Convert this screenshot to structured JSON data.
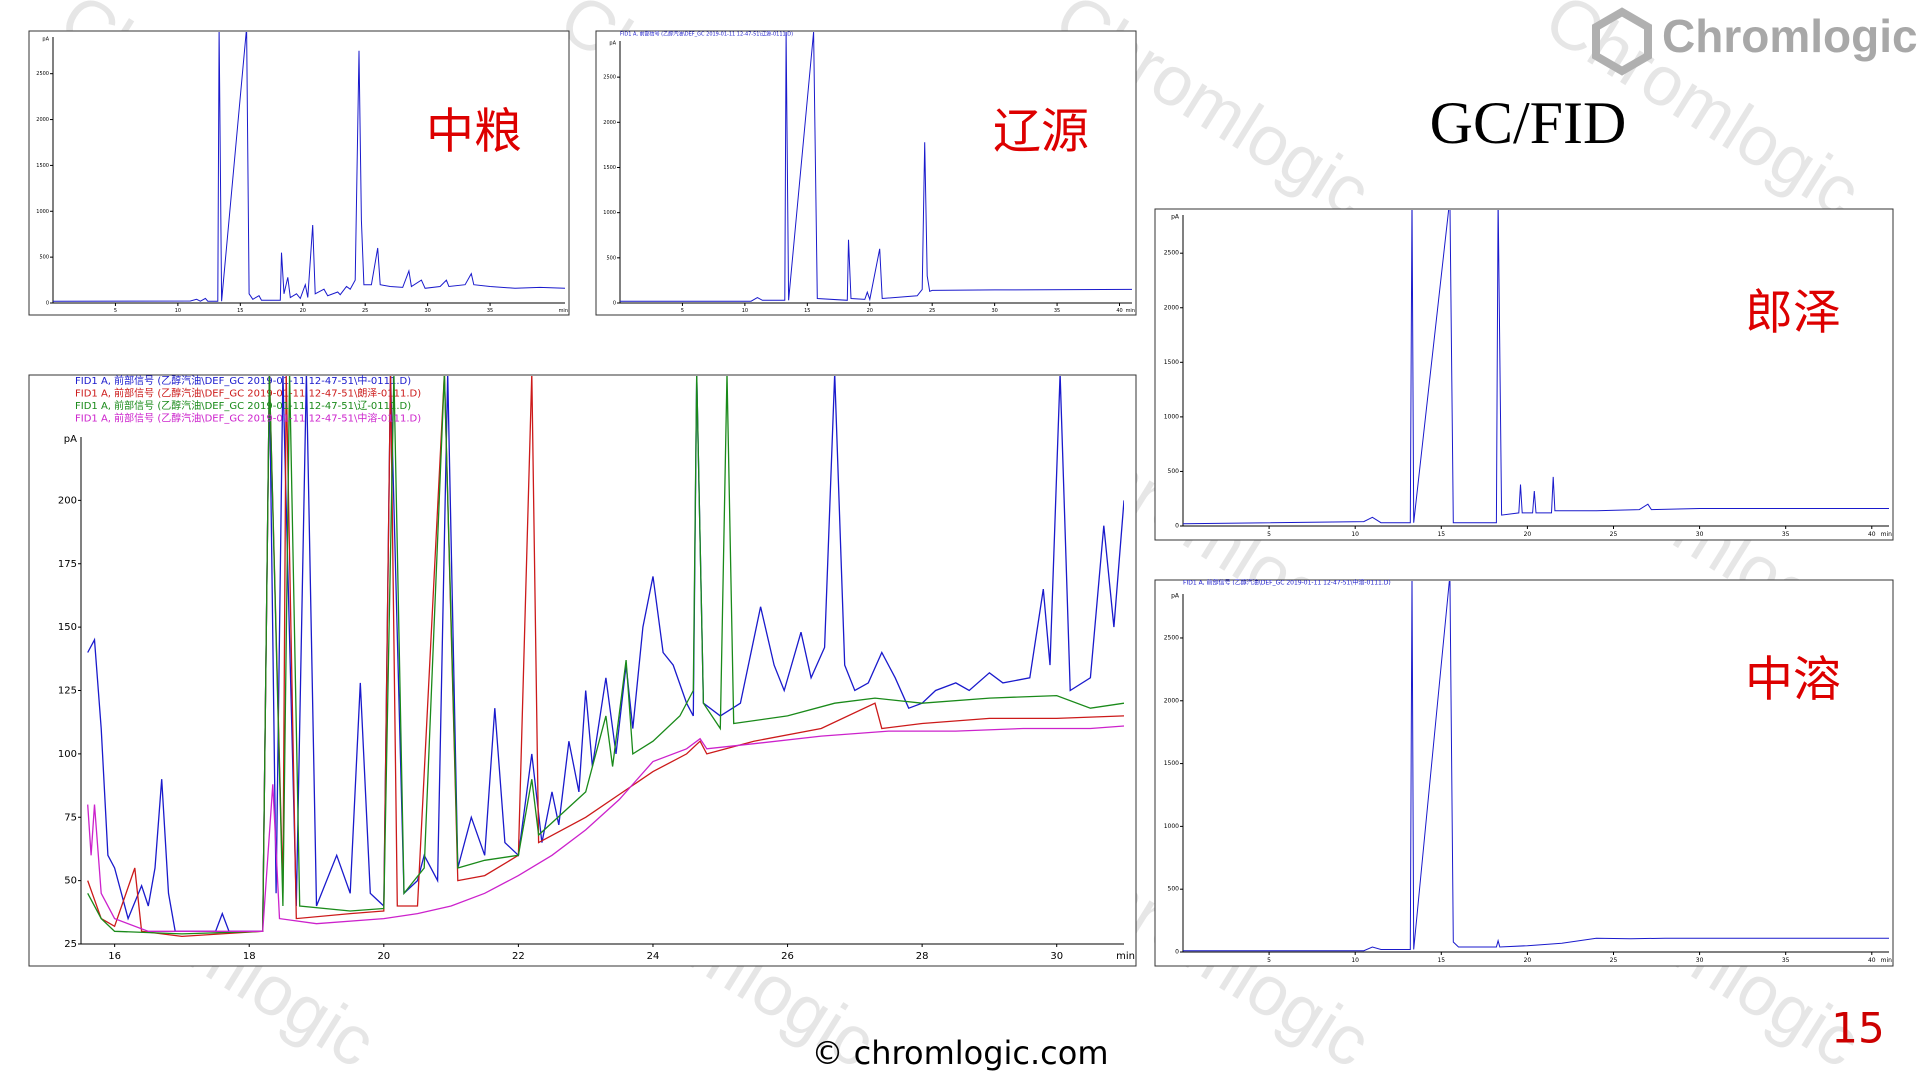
{
  "logo": "Chromlogic",
  "watermark": "Chromlogic",
  "title": "GC/FID",
  "footer": "© chromlogic.com",
  "page_number": "15",
  "chart_data": [
    {
      "type": "line",
      "label": "中粮",
      "x_label": "min",
      "y_label": "pA",
      "xlim": [
        0,
        41
      ],
      "ylim": [
        0,
        2900
      ],
      "xticks": [
        5,
        10,
        15,
        20,
        25,
        30,
        35
      ],
      "yticks": [
        0,
        500,
        1000,
        1500,
        2000,
        2500
      ],
      "series": [
        {
          "color": "#1a1acc",
          "x": [
            0,
            11,
            11.5,
            11.8,
            12.2,
            12.4,
            13.2,
            13.3,
            13.5,
            15.5,
            15.7,
            16,
            16.5,
            16.7,
            18.2,
            18.3,
            18.5,
            18.8,
            19,
            19.5,
            19.8,
            20.2,
            20.4,
            20.8,
            21,
            21.7,
            22,
            22.8,
            23,
            23.5,
            23.8,
            24.2,
            24.5,
            24.7,
            24.9,
            25.5,
            26,
            26.2,
            27,
            28,
            28.5,
            28.7,
            29.5,
            29.8,
            31,
            31.5,
            31.7,
            33,
            33.5,
            33.7,
            35,
            37,
            39,
            41
          ],
          "values": [
            20,
            22,
            40,
            20,
            50,
            20,
            20,
            3000,
            20,
            3000,
            100,
            40,
            80,
            30,
            30,
            550,
            100,
            280,
            60,
            100,
            50,
            200,
            60,
            850,
            100,
            150,
            80,
            120,
            90,
            180,
            150,
            250,
            2750,
            900,
            200,
            200,
            600,
            200,
            180,
            170,
            350,
            180,
            250,
            160,
            180,
            250,
            180,
            200,
            320,
            200,
            180,
            160,
            170,
            160
          ]
        }
      ]
    },
    {
      "type": "line",
      "label": "辽源",
      "x_label": "min",
      "y_label": "pA",
      "xlim": [
        0,
        41
      ],
      "ylim": [
        0,
        2900
      ],
      "xticks": [
        5,
        10,
        15,
        20,
        25,
        30,
        35,
        40
      ],
      "yticks": [
        0,
        500,
        1000,
        1500,
        2000,
        2500
      ],
      "series": [
        {
          "name": "FID1 A, 前部信号 (乙醇汽油\\DEF_GC 2019-01-11 12-47-51\\辽源-0111.D)",
          "color": "#1a1acc",
          "x": [
            0,
            10.5,
            11,
            11.4,
            13.2,
            13.3,
            13.5,
            15.5,
            15.8,
            18.2,
            18.3,
            18.5,
            19.6,
            19.8,
            20,
            20.8,
            21,
            23.8,
            24.2,
            24.4,
            24.6,
            24.8,
            25,
            30,
            41
          ],
          "values": [
            20,
            20,
            60,
            30,
            30,
            3000,
            30,
            3000,
            50,
            30,
            700,
            50,
            40,
            120,
            40,
            600,
            50,
            80,
            150,
            1780,
            300,
            130,
            140,
            145,
            150
          ]
        }
      ]
    },
    {
      "type": "line",
      "label": "郎泽",
      "x_label": "min",
      "y_label": "pA",
      "xlim": [
        0,
        41
      ],
      "ylim": [
        0,
        2850
      ],
      "xticks": [
        5,
        10,
        15,
        20,
        25,
        30,
        35,
        40
      ],
      "yticks": [
        0,
        500,
        1000,
        1500,
        2000,
        2500
      ],
      "series": [
        {
          "color": "#1a1acc",
          "x": [
            0,
            10.5,
            11,
            11.5,
            13.2,
            13.3,
            13.4,
            15.5,
            15.7,
            18.2,
            18.3,
            18.5,
            19.5,
            19.6,
            19.7,
            20.3,
            20.4,
            20.5,
            21.4,
            21.5,
            21.6,
            24,
            26.5,
            27,
            27.2,
            30,
            41
          ],
          "values": [
            20,
            40,
            80,
            30,
            30,
            3000,
            30,
            3000,
            30,
            30,
            3000,
            100,
            120,
            380,
            120,
            120,
            320,
            120,
            120,
            450,
            140,
            140,
            150,
            200,
            150,
            160,
            160
          ]
        }
      ]
    },
    {
      "type": "line",
      "label": "中溶",
      "x_label": "min",
      "y_label": "pA",
      "xlim": [
        0,
        41
      ],
      "ylim": [
        0,
        2850
      ],
      "xticks": [
        5,
        10,
        15,
        20,
        25,
        30,
        35,
        40
      ],
      "yticks": [
        0,
        500,
        1000,
        1500,
        2000,
        2500
      ],
      "series": [
        {
          "name": "FID1 A, 前部信号 (乙醇汽油\\DEF_GC 2019-01-11 12-47-51\\中溶-0111.D)",
          "color": "#1a1acc",
          "x": [
            0,
            10.5,
            11,
            11.5,
            13.2,
            13.3,
            13.4,
            15.5,
            15.7,
            16,
            18.2,
            18.3,
            18.4,
            20,
            22,
            24,
            26,
            28,
            30,
            41
          ],
          "values": [
            10,
            10,
            40,
            20,
            20,
            3000,
            20,
            3000,
            80,
            40,
            40,
            90,
            40,
            50,
            70,
            110,
            105,
            110,
            110,
            110
          ]
        }
      ]
    },
    {
      "type": "line",
      "x_label": "min",
      "y_label": "pA",
      "xlim": [
        15.5,
        31
      ],
      "ylim": [
        25,
        225
      ],
      "xticks": [
        16,
        18,
        20,
        22,
        24,
        26,
        28,
        30
      ],
      "yticks": [
        25,
        50,
        75,
        100,
        125,
        150,
        175,
        200
      ],
      "series": [
        {
          "name": "FID1 A, 前部信号 (乙醇汽油\\DEF_GC 2019-01-11 12-47-51\\中-0111.D)",
          "color": "#1a1acc",
          "x": [
            15.6,
            15.7,
            15.8,
            15.9,
            16.0,
            16.1,
            16.2,
            16.4,
            16.5,
            16.6,
            16.7,
            16.8,
            16.9,
            17.5,
            17.6,
            17.7,
            18.2,
            18.3,
            18.4,
            18.5,
            18.7,
            18.85,
            19.0,
            19.3,
            19.5,
            19.65,
            19.8,
            20.0,
            20.1,
            20.3,
            20.5,
            20.6,
            20.8,
            20.95,
            21.1,
            21.3,
            21.5,
            21.65,
            21.8,
            22.0,
            22.2,
            22.35,
            22.5,
            22.6,
            22.75,
            22.9,
            23.0,
            23.1,
            23.3,
            23.45,
            23.6,
            23.7,
            23.85,
            24.0,
            24.15,
            24.3,
            24.5,
            24.6,
            24.65,
            24.75,
            25.0,
            25.3,
            25.6,
            25.8,
            25.95,
            26.2,
            26.35,
            26.55,
            26.7,
            26.85,
            27.0,
            27.2,
            27.4,
            27.6,
            27.8,
            28.0,
            28.2,
            28.5,
            28.7,
            29.0,
            29.2,
            29.6,
            29.8,
            29.9,
            30.05,
            30.2,
            30.5,
            30.7,
            30.85,
            31.0
          ],
          "values": [
            140,
            145,
            110,
            60,
            55,
            45,
            35,
            48,
            40,
            55,
            90,
            45,
            30,
            30,
            37,
            30,
            30,
            250,
            45,
            250,
            40,
            250,
            40,
            60,
            45,
            128,
            45,
            40,
            250,
            45,
            50,
            60,
            50,
            250,
            55,
            75,
            60,
            118,
            65,
            60,
            100,
            65,
            85,
            72,
            105,
            85,
            125,
            95,
            130,
            100,
            135,
            110,
            150,
            170,
            140,
            135,
            120,
            115,
            250,
            120,
            115,
            120,
            158,
            135,
            125,
            148,
            130,
            142,
            250,
            135,
            125,
            128,
            140,
            130,
            118,
            120,
            125,
            128,
            125,
            132,
            128,
            130,
            165,
            135,
            250,
            125,
            130,
            190,
            150,
            200
          ]
        },
        {
          "name": "FID1 A, 前部信号 (乙醇汽油\\DEF_GC 2019-01-11 12-47-51\\朗泽-0111.D)",
          "color": "#cc1a1a",
          "x": [
            15.6,
            15.8,
            16.0,
            16.3,
            16.4,
            17,
            18.2,
            18.3,
            18.5,
            18.55,
            18.7,
            19.5,
            20.0,
            20.1,
            20.2,
            20.5,
            20.9,
            21.1,
            21.5,
            22.0,
            22.2,
            22.3,
            23,
            24,
            24.5,
            24.7,
            24.8,
            25.5,
            26.5,
            27.3,
            27.4,
            28,
            29,
            30,
            31
          ],
          "values": [
            50,
            35,
            32,
            55,
            30,
            28,
            30,
            250,
            45,
            250,
            35,
            37,
            38,
            250,
            40,
            40,
            250,
            50,
            52,
            60,
            250,
            65,
            75,
            93,
            100,
            105,
            100,
            105,
            110,
            120,
            110,
            112,
            114,
            114,
            115
          ]
        },
        {
          "name": "FID1 A, 前部信号 (乙醇汽油\\DEF_GC 2019-01-11 12-47-51\\辽-0111.D)",
          "color": "#1a8a1a",
          "x": [
            15.6,
            15.8,
            16,
            17,
            18.2,
            18.3,
            18.5,
            18.6,
            18.75,
            19.5,
            20.0,
            20.15,
            20.3,
            20.6,
            20.9,
            21.1,
            21.5,
            22.0,
            22.2,
            22.3,
            23,
            23.3,
            23.4,
            23.6,
            23.7,
            24.0,
            24.4,
            24.6,
            24.65,
            24.75,
            25.0,
            25.1,
            25.2,
            26,
            26.7,
            27.3,
            28,
            29,
            30,
            30.5,
            31
          ],
          "values": [
            45,
            35,
            30,
            29,
            30,
            250,
            40,
            250,
            40,
            38,
            39,
            250,
            45,
            55,
            250,
            55,
            58,
            60,
            90,
            68,
            85,
            115,
            95,
            137,
            100,
            105,
            115,
            125,
            250,
            120,
            110,
            250,
            112,
            115,
            120,
            122,
            120,
            122,
            123,
            118,
            120
          ]
        },
        {
          "name": "FID1 A, 前部信号 (乙醇汽油\\DEF_GC 2019-01-11 12-47-51\\中溶-0111.D)",
          "color": "#cc22cc",
          "x": [
            15.6,
            15.65,
            15.7,
            15.8,
            16,
            16.5,
            18.2,
            18.35,
            18.45,
            19,
            20,
            20.5,
            21,
            21.5,
            22,
            22.5,
            23,
            23.5,
            24,
            24.5,
            24.7,
            24.8,
            25.5,
            26.5,
            27.5,
            28.5,
            29.5,
            30.5,
            31
          ],
          "values": [
            80,
            60,
            80,
            45,
            35,
            30,
            30,
            88,
            35,
            33,
            35,
            37,
            40,
            45,
            52,
            60,
            70,
            82,
            97,
            102,
            106,
            102,
            104,
            107,
            109,
            109,
            110,
            110,
            111
          ]
        }
      ]
    }
  ]
}
